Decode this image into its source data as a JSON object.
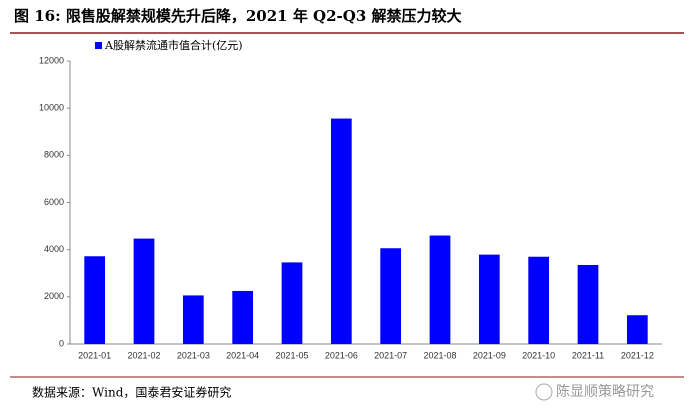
{
  "chart_data": {
    "type": "bar",
    "title": "图 16: 限售股解禁规模先升后降，2021 年 Q2-Q3 解禁压力较大",
    "categories": [
      "2021-01",
      "2021-02",
      "2021-03",
      "2021-04",
      "2021-05",
      "2021-06",
      "2021-07",
      "2021-08",
      "2021-09",
      "2021-10",
      "2021-11",
      "2021-12"
    ],
    "series": [
      {
        "name": "A股解禁流通市值合计(亿元)",
        "color": "#0000ff",
        "values": [
          3720,
          4470,
          2060,
          2250,
          3460,
          9560,
          4060,
          4600,
          3790,
          3700,
          3350,
          1220
        ]
      }
    ],
    "ylim": [
      0,
      12000
    ],
    "yticks": [
      0,
      2000,
      4000,
      6000,
      8000,
      10000,
      12000
    ],
    "grid": false,
    "source": "数据来源：Wind，国泰君安证券研究",
    "watermark": "陈显顺策略研究"
  }
}
